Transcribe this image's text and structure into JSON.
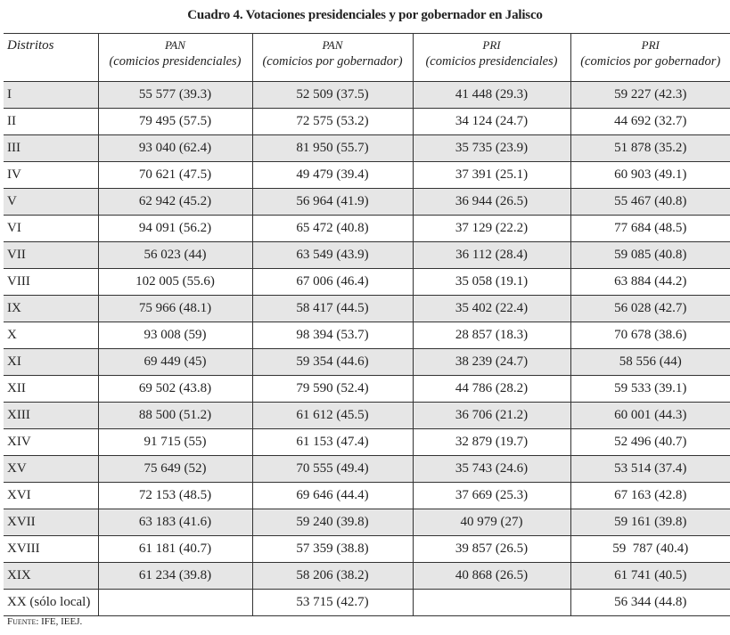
{
  "title": "Cuadro 4. Votaciones presidenciales y por gobernador en Jalisco",
  "columns": [
    {
      "label": "Distritos"
    },
    {
      "party": "PAN",
      "election": "(comicios presidenciales)"
    },
    {
      "party": "PAN",
      "election": "(comicios por gobernador)"
    },
    {
      "party": "PRI",
      "election": "(comicios presidenciales)"
    },
    {
      "party": "PRI",
      "election": "(comicios por gobernador)"
    }
  ],
  "rows": [
    [
      "I",
      "55 577 (39.3)",
      "52 509 (37.5)",
      "41 448 (29.3)",
      "59 227 (42.3)"
    ],
    [
      "II",
      "79 495 (57.5)",
      "72 575 (53.2)",
      "34 124 (24.7)",
      "44 692 (32.7)"
    ],
    [
      "III",
      "93 040 (62.4)",
      "81 950 (55.7)",
      "35 735 (23.9)",
      "51 878 (35.2)"
    ],
    [
      "IV",
      "70 621 (47.5)",
      "49 479 (39.4)",
      "37 391 (25.1)",
      "60 903 (49.1)"
    ],
    [
      "V",
      "62 942 (45.2)",
      "56 964 (41.9)",
      "36 944 (26.5)",
      "55 467 (40.8)"
    ],
    [
      "VI",
      "94 091 (56.2)",
      "65 472 (40.8)",
      "37 129 (22.2)",
      "77 684 (48.5)"
    ],
    [
      "VII",
      "56 023 (44)",
      "63 549 (43.9)",
      "36 112 (28.4)",
      "59 085 (40.8)"
    ],
    [
      "VIII",
      "102 005 (55.6)",
      "67 006 (46.4)",
      "35 058 (19.1)",
      "63 884 (44.2)"
    ],
    [
      "IX",
      "75 966 (48.1)",
      "58 417 (44.5)",
      "35 402 (22.4)",
      "56 028 (42.7)"
    ],
    [
      "X",
      "93 008 (59)",
      "98 394 (53.7)",
      "28 857 (18.3)",
      "70 678 (38.6)"
    ],
    [
      "XI",
      "69 449 (45)",
      "59 354 (44.6)",
      "38 239 (24.7)",
      "58 556 (44)"
    ],
    [
      "XII",
      "69 502 (43.8)",
      "79 590 (52.4)",
      "44 786 (28.2)",
      "59 533 (39.1)"
    ],
    [
      "XIII",
      "88 500 (51.2)",
      "61 612 (45.5)",
      "36 706 (21.2)",
      "60 001 (44.3)"
    ],
    [
      "XIV",
      "91 715 (55)",
      "61 153 (47.4)",
      "32 879 (19.7)",
      "52 496 (40.7)"
    ],
    [
      "XV",
      "75 649 (52)",
      "70 555 (49.4)",
      "35 743 (24.6)",
      "53 514 (37.4)"
    ],
    [
      "XVI",
      "72 153 (48.5)",
      "69 646 (44.4)",
      "37 669 (25.3)",
      "67 163 (42.8)"
    ],
    [
      "XVII",
      "63 183 (41.6)",
      "59 240 (39.8)",
      "40 979 (27)",
      "59 161 (39.8)"
    ],
    [
      "XVIII",
      "61 181 (40.7)",
      "57 359 (38.8)",
      "39 857 (26.5)",
      "59  787 (40.4)"
    ],
    [
      "XIX",
      "61 234 (39.8)",
      "58 206 (38.2)",
      "40 868 (26.5)",
      "61 741 (40.5)"
    ],
    [
      "XX (sólo local)",
      "",
      "53 715 (42.7)",
      "",
      "56 344 (44.8)"
    ]
  ],
  "source": "Fuente: IFE, IEEJ.",
  "colors": {
    "row_shade": "#e6e6e6",
    "rule": "#333333"
  }
}
